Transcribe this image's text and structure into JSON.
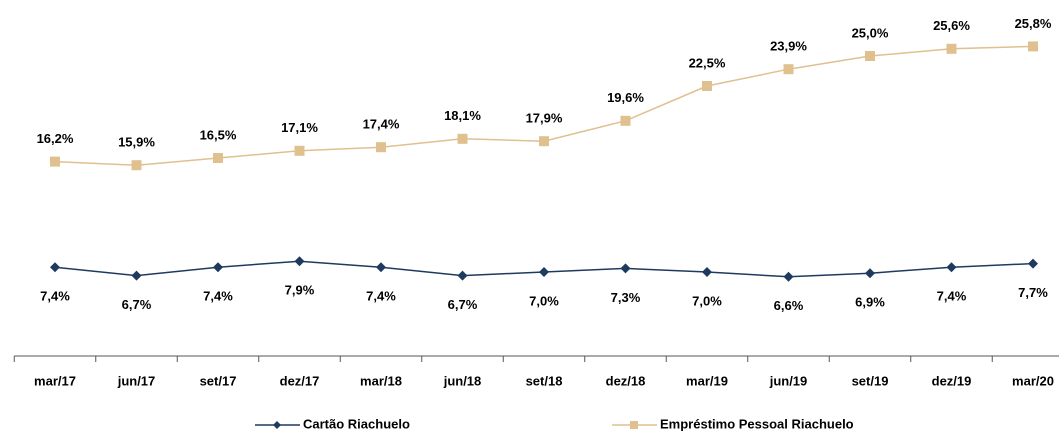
{
  "chart_data": {
    "type": "line",
    "categories": [
      "mar/17",
      "jun/17",
      "set/17",
      "dez/17",
      "mar/18",
      "jun/18",
      "set/18",
      "dez/18",
      "mar/19",
      "jun/19",
      "set/19",
      "dez/19",
      "mar/20"
    ],
    "ylim": [
      0,
      29
    ],
    "series": [
      {
        "name": "Cartão Riachuelo",
        "color": "#1f3a5f",
        "marker": "diamond",
        "label_position": "below",
        "values": [
          7.4,
          6.7,
          7.4,
          7.9,
          7.4,
          6.7,
          7.0,
          7.3,
          7.0,
          6.6,
          6.9,
          7.4,
          7.7
        ],
        "value_labels": [
          "7,4%",
          "6,7%",
          "7,4%",
          "7,9%",
          "7,4%",
          "6,7%",
          "7,0%",
          "7,3%",
          "7,0%",
          "6,6%",
          "6,9%",
          "7,4%",
          "7,7%"
        ]
      },
      {
        "name": "Empréstimo Pessoal Riachuelo",
        "color": "#e0c08e",
        "marker": "square",
        "label_position": "above",
        "values": [
          16.2,
          15.9,
          16.5,
          17.1,
          17.4,
          18.1,
          17.9,
          19.6,
          22.5,
          23.9,
          25.0,
          25.6,
          25.8
        ],
        "value_labels": [
          "16,2%",
          "15,9%",
          "16,5%",
          "17,1%",
          "17,4%",
          "18,1%",
          "17,9%",
          "19,6%",
          "22,5%",
          "23,9%",
          "25,0%",
          "25,6%",
          "25,8%"
        ]
      }
    ]
  }
}
